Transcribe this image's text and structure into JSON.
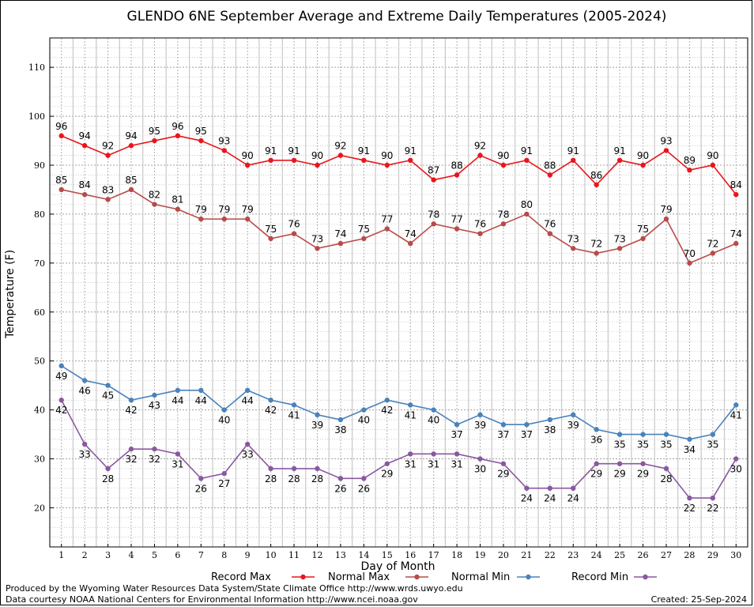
{
  "chart_data": {
    "type": "line",
    "title": "GLENDO 6NE September Average and Extreme Daily Temperatures (2005-2024)",
    "xlabel": "Day of Month",
    "ylabel": "Temperature (F)",
    "xlim": [
      0.5,
      30.5
    ],
    "ylim": [
      12,
      116
    ],
    "yticks": [
      20,
      30,
      40,
      50,
      60,
      70,
      80,
      90,
      100,
      110
    ],
    "x": [
      1,
      2,
      3,
      4,
      5,
      6,
      7,
      8,
      9,
      10,
      11,
      12,
      13,
      14,
      15,
      16,
      17,
      18,
      19,
      20,
      21,
      22,
      23,
      24,
      25,
      26,
      27,
      28,
      29,
      30
    ],
    "grid": true,
    "legend_position": "bottom",
    "series": [
      {
        "name": "Record Max",
        "color": "#e8161c",
        "label_pos": "above",
        "values": [
          96,
          94,
          92,
          94,
          95,
          96,
          95,
          93,
          90,
          91,
          91,
          90,
          92,
          91,
          90,
          91,
          87,
          88,
          92,
          90,
          91,
          88,
          91,
          86,
          91,
          90,
          93,
          89,
          90,
          84
        ]
      },
      {
        "name": "Normal Max",
        "color": "#b84b4b",
        "label_pos": "above",
        "values": [
          85,
          84,
          83,
          85,
          82,
          81,
          79,
          79,
          79,
          75,
          76,
          73,
          74,
          75,
          77,
          74,
          78,
          77,
          76,
          78,
          80,
          76,
          73,
          72,
          73,
          75,
          79,
          70,
          72,
          74
        ]
      },
      {
        "name": "Normal Min",
        "color": "#4a82bb",
        "label_pos": "below",
        "values": [
          49,
          46,
          45,
          42,
          43,
          44,
          44,
          40,
          44,
          42,
          41,
          39,
          38,
          40,
          42,
          41,
          40,
          37,
          39,
          37,
          37,
          38,
          39,
          36,
          35,
          35,
          35,
          34,
          35,
          41
        ]
      },
      {
        "name": "Record Min",
        "color": "#8a58a0",
        "label_pos": "below",
        "values": [
          42,
          33,
          28,
          32,
          32,
          31,
          26,
          27,
          33,
          28,
          28,
          28,
          26,
          26,
          29,
          31,
          31,
          31,
          30,
          29,
          24,
          24,
          24,
          29,
          29,
          29,
          28,
          22,
          22,
          30
        ]
      }
    ]
  },
  "footer": {
    "line1": "Produced by the Wyoming Water Resources Data System/State Climate Office http://www.wrds.uwyo.edu",
    "line2": "Data courtesy NOAA National Centers for Environmental Information http://www.ncei.noaa.gov",
    "created": "Created:  25-Sep-2024"
  }
}
